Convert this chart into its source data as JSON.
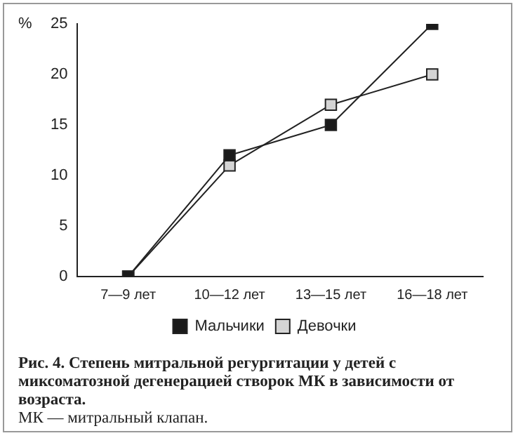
{
  "chart_data": {
    "type": "line",
    "ylabel": "%",
    "categories": [
      "7—9 лет",
      "10—12 лет",
      "13—15 лет",
      "16—18 лет"
    ],
    "series": [
      {
        "name": "Мальчики",
        "color": "#1a1a1a",
        "values": [
          0,
          12,
          15,
          25
        ]
      },
      {
        "name": "Девочки",
        "color": "#d4d4d4",
        "values": [
          0,
          11,
          17,
          20
        ]
      }
    ],
    "ylim": [
      0,
      25
    ],
    "yticks": [
      0,
      5,
      10,
      15,
      20,
      25
    ],
    "grid": false,
    "legend": "bottom",
    "marker": "square",
    "line_style": "solid",
    "annotations": [
      "Рис. 4. Степень митральной регургитации у детей с миксоматозной дегенерацией створок МК в зависимости от возраста.",
      "МК — митральный клапан."
    ]
  }
}
